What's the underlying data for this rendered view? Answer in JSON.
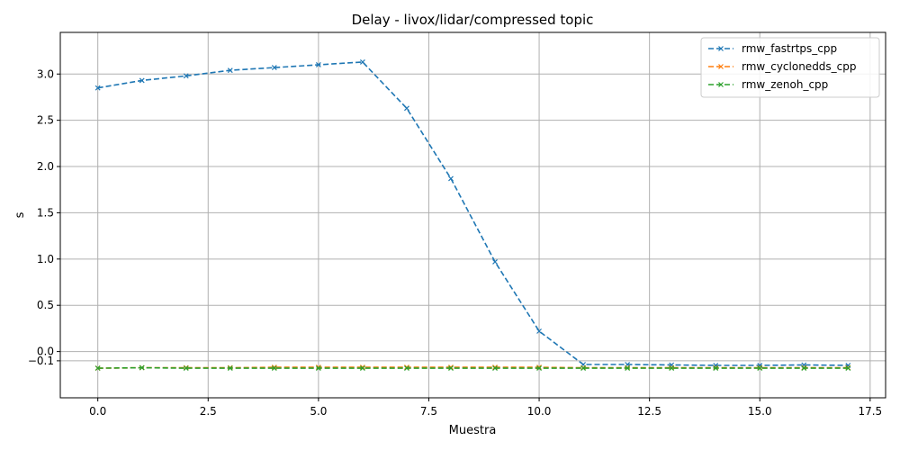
{
  "chart_data": {
    "type": "line",
    "title": "Delay - livox/lidar/compressed topic",
    "xlabel": "Muestra",
    "ylabel": "s",
    "xlim": [
      -0.85,
      17.85
    ],
    "ylim": [
      -0.5,
      3.45
    ],
    "xticks": [
      0,
      2.5,
      5,
      7.5,
      10,
      12.5,
      15,
      17.5
    ],
    "xtick_labels": [
      "0.0",
      "2.5",
      "5.0",
      "7.5",
      "10.0",
      "12.5",
      "15.0",
      "17.5"
    ],
    "yticks": [
      0,
      0.5,
      1.0,
      1.5,
      2.0,
      2.5,
      3.0
    ],
    "ytick_labels": [
      "0.0",
      "0.5",
      "1.0",
      "1.5",
      "2.0",
      "2.5",
      "3.0"
    ],
    "ytick_minus_labels": [
      {
        "value": -0.1,
        "label": "−0.1"
      }
    ],
    "grid": true,
    "legend_position": "top-right",
    "x": [
      0,
      1,
      2,
      3,
      4,
      5,
      6,
      7,
      8,
      9,
      10,
      11,
      12,
      13,
      14,
      15,
      16,
      17
    ],
    "series": [
      {
        "name": "rmw_fastrtps_cpp",
        "color": "#1f77b4",
        "values": [
          2.85,
          2.93,
          2.98,
          3.04,
          3.07,
          3.1,
          3.13,
          2.63,
          1.87,
          0.97,
          0.22,
          -0.14,
          -0.14,
          -0.145,
          -0.15,
          -0.15,
          -0.145,
          -0.15
        ]
      },
      {
        "name": "rmw_cyclonedds_cpp",
        "color": "#ff7f0e",
        "values": [
          -0.18,
          -0.175,
          -0.175,
          -0.175,
          -0.17,
          -0.17,
          -0.17,
          -0.17,
          -0.17,
          -0.17,
          -0.17,
          -0.175,
          -0.175,
          -0.175,
          -0.175,
          -0.175,
          -0.175,
          -0.175
        ]
      },
      {
        "name": "rmw_zenoh_cpp",
        "color": "#2ca02c",
        "values": [
          -0.18,
          -0.175,
          -0.18,
          -0.18,
          -0.18,
          -0.18,
          -0.18,
          -0.18,
          -0.18,
          -0.18,
          -0.18,
          -0.18,
          -0.18,
          -0.18,
          -0.18,
          -0.18,
          -0.18,
          -0.18
        ]
      }
    ]
  }
}
